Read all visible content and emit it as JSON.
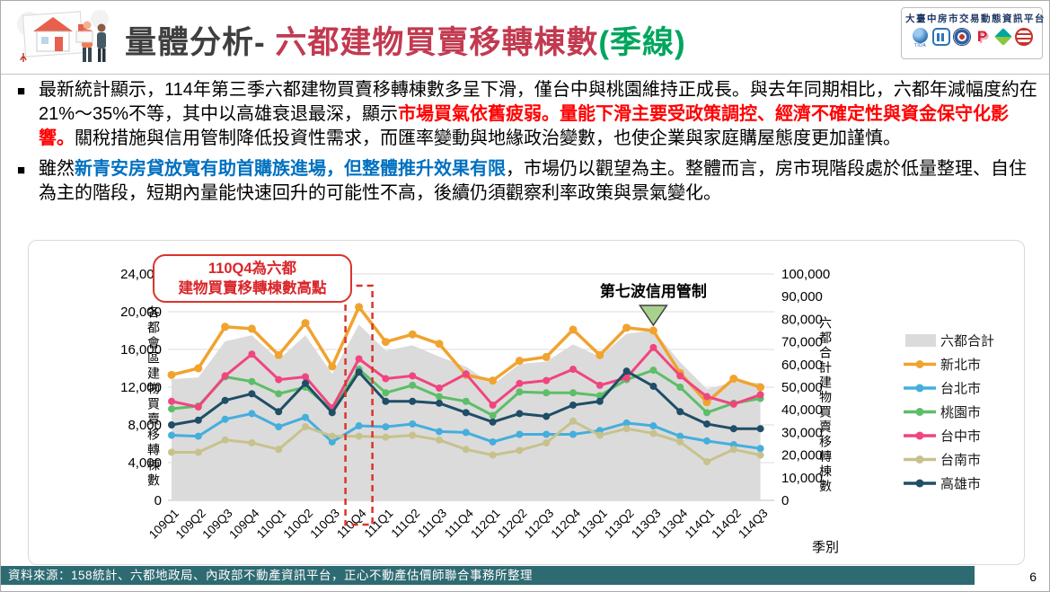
{
  "header": {
    "title_prefix": "量體分析- ",
    "title_main": "六都建物買賣移轉棟數",
    "title_suffix": "(季線)",
    "platform_name": "大臺中房市交易動態資訊平台",
    "platform_logo_icons": [
      "tida-logo",
      "association-building-logo",
      "government-emblem-logo",
      "p-brand-logo",
      "diamond-brand-logo",
      "globe-brand-logo"
    ],
    "tida_caption": "TIDA"
  },
  "bullets": [
    {
      "marker": "■",
      "segments": [
        {
          "style": "normal",
          "text": "最新統計顯示，114年第三季六都建物買賣移轉棟數多呈下滑，僅台中與桃園維持正成長。與去年同期相比，六都年減幅度約在21%～35%不等，其中以高雄衰退最深，顯示"
        },
        {
          "style": "red-bold",
          "text": "市場買氣依舊疲弱。量能下滑主要受政策調控、經濟不確定性與資金保守化影響。"
        },
        {
          "style": "normal",
          "text": "關稅措施與信用管制降低投資性需求，而匯率變動與地緣政治變數，也使企業與家庭購屋態度更加謹慎。"
        }
      ]
    },
    {
      "marker": "■",
      "segments": [
        {
          "style": "normal",
          "text": "雖然"
        },
        {
          "style": "blue-bold",
          "text": "新青安房貸放寬有助首購族進場，但整體推升效果有限"
        },
        {
          "style": "normal",
          "text": "，市場仍以觀望為主。整體而言，房市現階段處於低量整理、自住為主的階段，短期內量能快速回升的可能性不高，後續仍須觀察利率政策與景氣變化。"
        }
      ]
    }
  ],
  "chart": {
    "callout_line1": "110Q4為六都",
    "callout_line2": "建物買賣移轉棟數高點",
    "highlight_category": "110Q4",
    "annotation": "第七波信用管制",
    "annotation_category": "113Q3",
    "left_axis_title": "各都會區建物買賣移轉棟數",
    "right_axis_title": "六都合計建物買賣移轉棟數",
    "x_axis_title": "季別",
    "colors": {
      "highlight_box": "#d9342b",
      "annotation_triangle": "#a9d18e",
      "gridline": "#dbdbdb"
    }
  },
  "chart_data": {
    "type": "line",
    "title": "六都建物買賣移轉棟數(季線)",
    "categories": [
      "109Q1",
      "109Q2",
      "109Q3",
      "109Q4",
      "110Q1",
      "110Q2",
      "110Q3",
      "110Q4",
      "111Q1",
      "111Q2",
      "111Q3",
      "111Q4",
      "112Q1",
      "112Q2",
      "112Q3",
      "112Q4",
      "113Q1",
      "113Q2",
      "113Q3",
      "113Q4",
      "114Q1",
      "114Q2",
      "114Q3"
    ],
    "left_axis": {
      "label": "各都會區建物買賣移轉棟數",
      "min": 0,
      "max": 24000,
      "step": 4000
    },
    "right_axis": {
      "label": "六都合計建物買賣移轉棟數",
      "min": 0,
      "max": 100000,
      "step": 10000
    },
    "xlabel": "季別",
    "grid": true,
    "legend_position": "right",
    "series": [
      {
        "name": "六都合計",
        "type": "area",
        "axis": "right",
        "color": "#dbdbdb",
        "values": [
          53500,
          54300,
          70300,
          72900,
          62100,
          72900,
          55900,
          77700,
          66100,
          68500,
          63500,
          59100,
          51100,
          60200,
          61300,
          68900,
          63500,
          73600,
          75100,
          61100,
          49200,
          52300,
          51900
        ]
      },
      {
        "name": "新北市",
        "type": "line",
        "axis": "left",
        "color": "#f0a32f",
        "values": [
          13300,
          14000,
          18400,
          18200,
          15400,
          18800,
          14200,
          20500,
          16800,
          17600,
          16600,
          13300,
          12700,
          14800,
          15200,
          18100,
          15400,
          18300,
          18000,
          13500,
          10400,
          12900,
          12000
        ]
      },
      {
        "name": "台北市",
        "type": "line",
        "axis": "left",
        "color": "#45aedd",
        "values": [
          6900,
          6800,
          8600,
          9200,
          7800,
          8800,
          6200,
          7900,
          7800,
          8100,
          7300,
          7200,
          6200,
          7000,
          7000,
          7000,
          7400,
          8200,
          7900,
          6800,
          6300,
          5900,
          5500
        ]
      },
      {
        "name": "桃園市",
        "type": "line",
        "axis": "left",
        "color": "#5dbe68",
        "values": [
          9700,
          10000,
          13100,
          12600,
          11300,
          12000,
          9600,
          13900,
          11400,
          12200,
          11000,
          10500,
          9000,
          11500,
          11400,
          11400,
          11100,
          12800,
          13800,
          12000,
          9300,
          10300,
          10800
        ]
      },
      {
        "name": "台中市",
        "type": "line",
        "axis": "left",
        "color": "#f0457e",
        "values": [
          10500,
          9900,
          13200,
          15500,
          12800,
          13100,
          9800,
          15000,
          12900,
          13200,
          11900,
          13400,
          10100,
          12400,
          12700,
          13900,
          12200,
          13000,
          16200,
          13200,
          11000,
          10200,
          11200
        ]
      },
      {
        "name": "台南市",
        "type": "line",
        "axis": "left",
        "color": "#c7c28d",
        "values": [
          5100,
          5100,
          6400,
          6100,
          5400,
          7800,
          6800,
          6800,
          6700,
          6900,
          6400,
          5400,
          4800,
          5300,
          6100,
          8400,
          6900,
          7600,
          7100,
          6200,
          4100,
          5400,
          4800
        ]
      },
      {
        "name": "高雄市",
        "type": "line",
        "axis": "left",
        "color": "#1f4e66",
        "values": [
          8000,
          8500,
          10600,
          11300,
          9400,
          12400,
          9300,
          13600,
          10500,
          10500,
          10300,
          9300,
          8300,
          9200,
          8900,
          10100,
          10500,
          13700,
          12100,
          9400,
          8100,
          7600,
          7600
        ]
      }
    ]
  },
  "footer": {
    "source": "資料來源：158統計、六都地政局、內政部不動產資訊平台，正心不動產估價師聯合事務所整理",
    "page_number": "6"
  }
}
